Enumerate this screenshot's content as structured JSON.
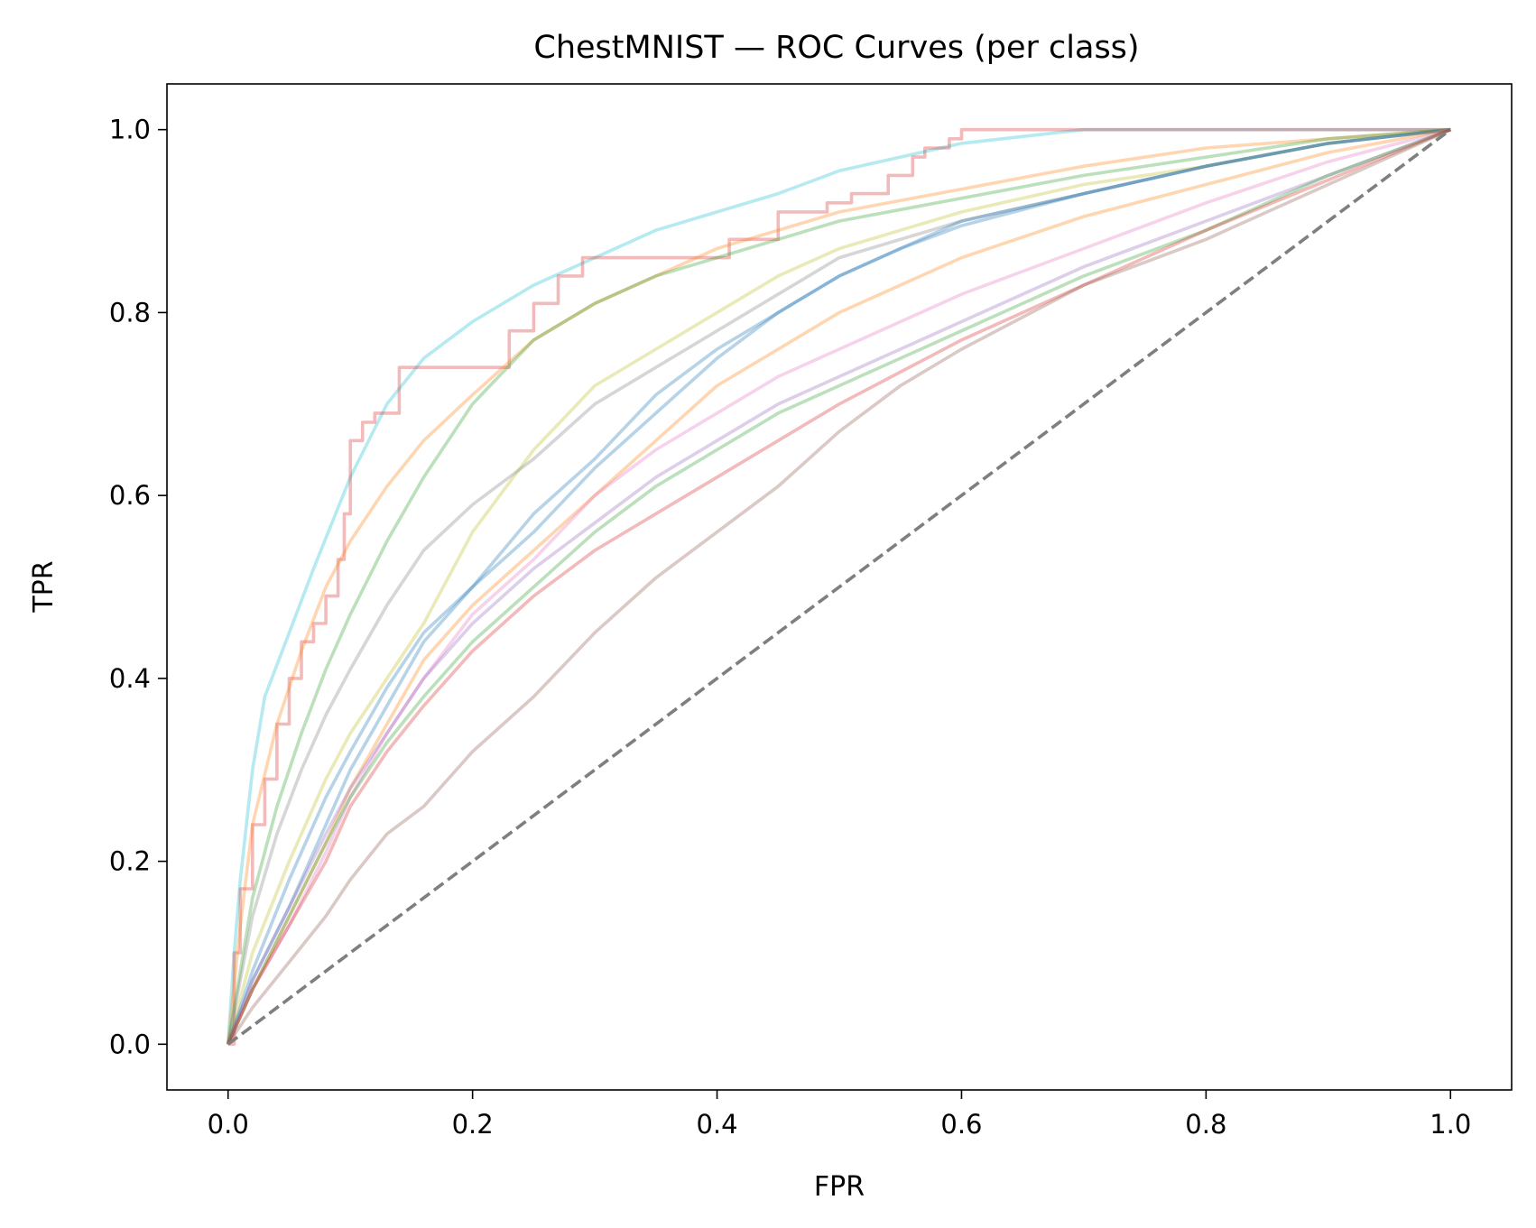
{
  "chart_data": {
    "type": "line",
    "title": "ChestMNIST — ROC Curves (per class)",
    "xlabel": "FPR",
    "ylabel": "TPR",
    "xlim": [
      -0.05,
      1.05
    ],
    "ylim": [
      -0.05,
      1.05
    ],
    "xticks": [
      "0.0",
      "0.2",
      "0.4",
      "0.6",
      "0.8",
      "1.0"
    ],
    "yticks": [
      "0.0",
      "0.2",
      "0.4",
      "0.6",
      "0.8",
      "1.0"
    ],
    "tick_values": [
      0,
      0.2,
      0.4,
      0.6,
      0.8,
      1.0
    ],
    "grid": false,
    "legend": "none",
    "diagonal": {
      "x": [
        0,
        1
      ],
      "y": [
        0,
        1
      ],
      "color": "#7f7f7f",
      "style": "dashed"
    },
    "series": [
      {
        "color": "#17becf",
        "step": false,
        "x": [
          0,
          0.005,
          0.01,
          0.02,
          0.03,
          0.05,
          0.07,
          0.1,
          0.13,
          0.16,
          0.2,
          0.25,
          0.3,
          0.35,
          0.4,
          0.45,
          0.5,
          0.55,
          0.6,
          0.7,
          1
        ],
        "y": [
          0,
          0.1,
          0.18,
          0.3,
          0.38,
          0.45,
          0.52,
          0.62,
          0.7,
          0.75,
          0.79,
          0.83,
          0.86,
          0.89,
          0.91,
          0.93,
          0.955,
          0.97,
          0.985,
          1,
          1
        ]
      },
      {
        "color": "#d62728",
        "step": true,
        "x": [
          0,
          0.005,
          0.01,
          0.02,
          0.03,
          0.04,
          0.05,
          0.06,
          0.07,
          0.08,
          0.09,
          0.095,
          0.1,
          0.11,
          0.12,
          0.14,
          0.22,
          0.23,
          0.25,
          0.27,
          0.29,
          0.41,
          0.45,
          0.49,
          0.51,
          0.54,
          0.56,
          0.57,
          0.59,
          0.6,
          1
        ],
        "y": [
          0,
          0.1,
          0.17,
          0.24,
          0.29,
          0.35,
          0.4,
          0.44,
          0.46,
          0.49,
          0.53,
          0.58,
          0.66,
          0.68,
          0.69,
          0.74,
          0.74,
          0.78,
          0.81,
          0.84,
          0.86,
          0.88,
          0.91,
          0.92,
          0.93,
          0.95,
          0.97,
          0.98,
          0.99,
          1,
          1
        ]
      },
      {
        "color": "#ff7f0e",
        "step": false,
        "x": [
          0,
          0.01,
          0.02,
          0.04,
          0.06,
          0.08,
          0.1,
          0.13,
          0.16,
          0.2,
          0.25,
          0.3,
          0.35,
          0.4,
          0.45,
          0.5,
          0.6,
          0.7,
          0.8,
          0.9,
          1
        ],
        "y": [
          0,
          0.13,
          0.24,
          0.35,
          0.43,
          0.5,
          0.55,
          0.61,
          0.66,
          0.71,
          0.77,
          0.81,
          0.84,
          0.87,
          0.89,
          0.91,
          0.935,
          0.96,
          0.98,
          0.99,
          1
        ]
      },
      {
        "color": "#2ca02c",
        "step": false,
        "x": [
          0,
          0.01,
          0.02,
          0.04,
          0.06,
          0.08,
          0.1,
          0.13,
          0.16,
          0.2,
          0.25,
          0.3,
          0.35,
          0.4,
          0.5,
          0.6,
          0.7,
          0.8,
          0.9,
          1
        ],
        "y": [
          0,
          0.08,
          0.16,
          0.26,
          0.34,
          0.41,
          0.47,
          0.55,
          0.62,
          0.7,
          0.77,
          0.81,
          0.84,
          0.86,
          0.9,
          0.925,
          0.95,
          0.97,
          0.99,
          1
        ]
      },
      {
        "color": "#bcbd22",
        "step": false,
        "x": [
          0,
          0.02,
          0.05,
          0.08,
          0.1,
          0.13,
          0.16,
          0.2,
          0.25,
          0.3,
          0.35,
          0.4,
          0.45,
          0.5,
          0.6,
          0.7,
          0.8,
          0.9,
          1
        ],
        "y": [
          0,
          0.1,
          0.2,
          0.29,
          0.34,
          0.4,
          0.46,
          0.56,
          0.65,
          0.72,
          0.76,
          0.8,
          0.84,
          0.87,
          0.91,
          0.94,
          0.96,
          0.985,
          1
        ]
      },
      {
        "color": "#7f7f7f",
        "step": false,
        "x": [
          0,
          0.02,
          0.04,
          0.06,
          0.08,
          0.1,
          0.13,
          0.16,
          0.2,
          0.25,
          0.3,
          0.35,
          0.4,
          0.45,
          0.5,
          0.6,
          0.7,
          0.8,
          0.9,
          1
        ],
        "y": [
          0,
          0.14,
          0.23,
          0.3,
          0.36,
          0.41,
          0.48,
          0.54,
          0.59,
          0.64,
          0.7,
          0.74,
          0.78,
          0.82,
          0.86,
          0.9,
          0.93,
          0.96,
          0.985,
          1
        ]
      },
      {
        "color": "#1f77b4",
        "step": false,
        "x": [
          0,
          0.02,
          0.05,
          0.08,
          0.1,
          0.13,
          0.16,
          0.2,
          0.25,
          0.3,
          0.35,
          0.4,
          0.45,
          0.5,
          0.55,
          0.6,
          0.7,
          0.8,
          0.9,
          1
        ],
        "y": [
          0,
          0.08,
          0.18,
          0.27,
          0.32,
          0.39,
          0.45,
          0.5,
          0.58,
          0.64,
          0.71,
          0.76,
          0.8,
          0.84,
          0.87,
          0.895,
          0.93,
          0.96,
          0.985,
          1
        ]
      },
      {
        "color": "#1f77b4",
        "step": false,
        "x": [
          0,
          0.02,
          0.05,
          0.08,
          0.1,
          0.13,
          0.16,
          0.2,
          0.25,
          0.3,
          0.35,
          0.4,
          0.45,
          0.5,
          0.6,
          0.7,
          0.8,
          0.9,
          1
        ],
        "y": [
          0,
          0.07,
          0.15,
          0.24,
          0.3,
          0.37,
          0.44,
          0.5,
          0.56,
          0.63,
          0.69,
          0.75,
          0.8,
          0.84,
          0.9,
          0.93,
          0.96,
          0.985,
          1
        ]
      },
      {
        "color": "#ff7f0e",
        "step": false,
        "x": [
          0,
          0.02,
          0.05,
          0.08,
          0.1,
          0.13,
          0.16,
          0.2,
          0.25,
          0.3,
          0.35,
          0.4,
          0.45,
          0.5,
          0.6,
          0.7,
          0.8,
          0.9,
          1
        ],
        "y": [
          0,
          0.06,
          0.14,
          0.22,
          0.28,
          0.35,
          0.42,
          0.48,
          0.54,
          0.6,
          0.66,
          0.72,
          0.76,
          0.8,
          0.86,
          0.905,
          0.94,
          0.975,
          1
        ]
      },
      {
        "color": "#e377c2",
        "step": false,
        "x": [
          0,
          0.02,
          0.05,
          0.08,
          0.1,
          0.13,
          0.16,
          0.2,
          0.25,
          0.3,
          0.35,
          0.4,
          0.45,
          0.5,
          0.6,
          0.7,
          0.8,
          0.9,
          1
        ],
        "y": [
          0,
          0.06,
          0.13,
          0.21,
          0.27,
          0.34,
          0.4,
          0.47,
          0.53,
          0.6,
          0.65,
          0.69,
          0.73,
          0.76,
          0.82,
          0.87,
          0.92,
          0.965,
          1
        ]
      },
      {
        "color": "#9467bd",
        "step": false,
        "x": [
          0,
          0.02,
          0.05,
          0.08,
          0.1,
          0.13,
          0.16,
          0.2,
          0.25,
          0.3,
          0.35,
          0.4,
          0.45,
          0.5,
          0.6,
          0.7,
          0.8,
          0.9,
          1
        ],
        "y": [
          0,
          0.07,
          0.15,
          0.23,
          0.28,
          0.34,
          0.4,
          0.46,
          0.52,
          0.57,
          0.62,
          0.66,
          0.7,
          0.73,
          0.79,
          0.85,
          0.9,
          0.95,
          1
        ]
      },
      {
        "color": "#2ca02c",
        "step": false,
        "x": [
          0,
          0.02,
          0.05,
          0.08,
          0.1,
          0.13,
          0.16,
          0.2,
          0.25,
          0.3,
          0.35,
          0.4,
          0.45,
          0.5,
          0.6,
          0.7,
          0.8,
          0.9,
          1
        ],
        "y": [
          0,
          0.06,
          0.14,
          0.22,
          0.27,
          0.33,
          0.38,
          0.44,
          0.5,
          0.56,
          0.61,
          0.65,
          0.69,
          0.72,
          0.78,
          0.84,
          0.89,
          0.95,
          1
        ]
      },
      {
        "color": "#d62728",
        "step": false,
        "x": [
          0,
          0.02,
          0.05,
          0.08,
          0.1,
          0.13,
          0.16,
          0.2,
          0.25,
          0.3,
          0.35,
          0.4,
          0.45,
          0.5,
          0.6,
          0.7,
          0.8,
          0.9,
          1
        ],
        "y": [
          0,
          0.06,
          0.13,
          0.2,
          0.26,
          0.32,
          0.37,
          0.43,
          0.49,
          0.54,
          0.58,
          0.62,
          0.66,
          0.7,
          0.77,
          0.83,
          0.89,
          0.945,
          1
        ]
      },
      {
        "color": "#8c564b",
        "step": false,
        "x": [
          0,
          0.02,
          0.05,
          0.08,
          0.1,
          0.13,
          0.16,
          0.2,
          0.25,
          0.3,
          0.35,
          0.4,
          0.45,
          0.5,
          0.55,
          0.6,
          0.7,
          0.8,
          0.9,
          1
        ],
        "y": [
          0,
          0.04,
          0.09,
          0.14,
          0.18,
          0.23,
          0.26,
          0.32,
          0.38,
          0.45,
          0.51,
          0.56,
          0.61,
          0.67,
          0.72,
          0.76,
          0.83,
          0.88,
          0.94,
          1
        ]
      }
    ]
  }
}
